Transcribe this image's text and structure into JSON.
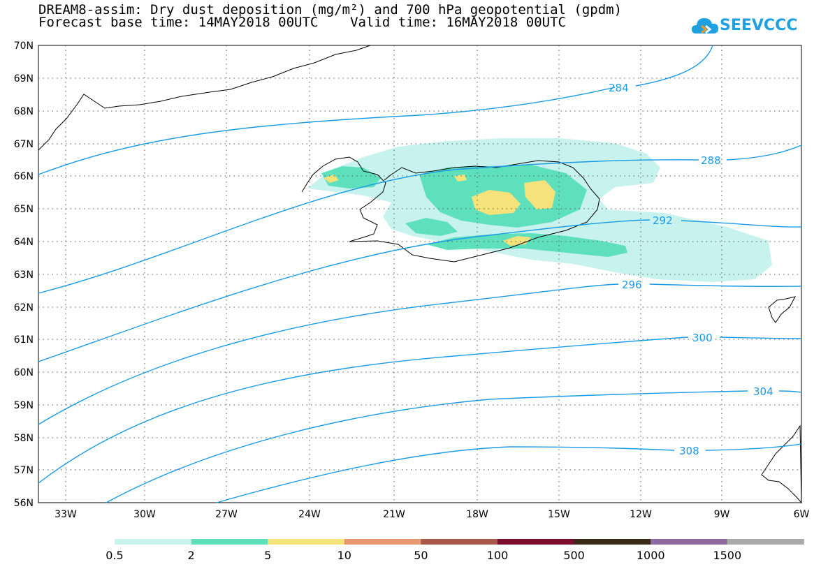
{
  "title": {
    "line1": "DREAM8-assim: Dry dust deposition (mg/m²) and 700 hPa geopotential (gpdm)",
    "line2": "Forecast base time: 14MAY2018 00UTC    Valid time: 16MAY2018 00UTC"
  },
  "logo": {
    "text": "SEEVCCC",
    "icon": "cloud-icon",
    "color": "#1fa0e0"
  },
  "lat_labels": [
    "70N",
    "69N",
    "68N",
    "67N",
    "66N",
    "65N",
    "64N",
    "63N",
    "62N",
    "61N",
    "60N",
    "59N",
    "58N",
    "57N",
    "56N"
  ],
  "lon_labels": [
    "33W",
    "30W",
    "27W",
    "24W",
    "21W",
    "18W",
    "15W",
    "12W",
    "9W",
    "6W"
  ],
  "contour_labels": [
    "284",
    "288",
    "292",
    "296",
    "300",
    "304",
    "308"
  ],
  "colorbar": {
    "labels": [
      "0.5",
      "2",
      "5",
      "10",
      "50",
      "100",
      "500",
      "1000",
      "1500"
    ],
    "colors": [
      "#c8f2ee",
      "#5fe0bc",
      "#f5e27a",
      "#e89870",
      "#a85848",
      "#7a0e2c",
      "#3a2a18",
      "#8e6aa0",
      "#aaaaaa"
    ]
  },
  "colors": {
    "contour": "#1a9be6"
  }
}
